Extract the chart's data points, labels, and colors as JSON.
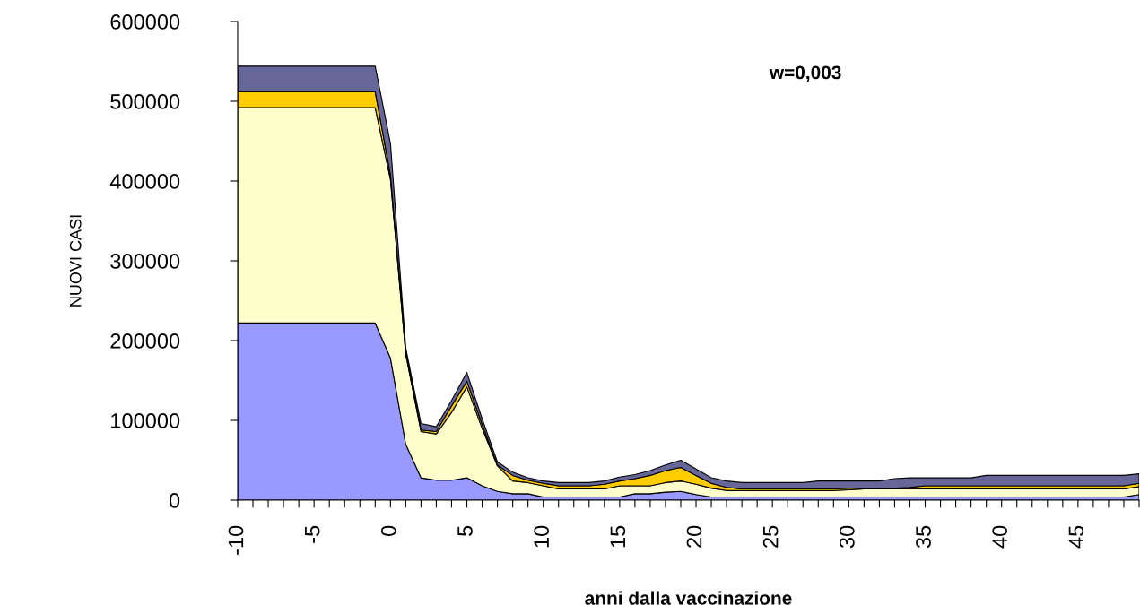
{
  "chart_data": {
    "type": "area",
    "stacked": true,
    "xlabel": "anni dalla vaccinazione",
    "ylabel": "NUOVI CASI",
    "annotations": [
      "w=0,003"
    ],
    "x": [
      -10,
      -9,
      -8,
      -7,
      -6,
      -5,
      -4,
      -3,
      -2,
      -1,
      0,
      1,
      2,
      3,
      4,
      5,
      6,
      7,
      8,
      9,
      10,
      11,
      12,
      13,
      14,
      15,
      16,
      17,
      18,
      19,
      20,
      21,
      22,
      23,
      24,
      25,
      26,
      27,
      28,
      29,
      30,
      31,
      32,
      33,
      34,
      35,
      36,
      37,
      38,
      39,
      40,
      41,
      42,
      43,
      44,
      45,
      46,
      47,
      48,
      49
    ],
    "xlim": [
      -10,
      49
    ],
    "xticks": [
      -10,
      {
        "value": -9,
        "label": null
      },
      {
        "value": -8,
        "label": null
      },
      {
        "value": -7,
        "label": null
      },
      {
        "value": -6,
        "label": null
      },
      {
        "value": -5,
        "label": "-5"
      },
      {
        "value": -4,
        "label": null
      },
      {
        "value": -3,
        "label": null
      },
      {
        "value": -2,
        "label": null
      },
      {
        "value": -1,
        "label": null
      },
      0,
      {
        "value": 1,
        "label": null
      },
      {
        "value": 2,
        "label": null
      },
      {
        "value": 3,
        "label": null
      },
      {
        "value": 4,
        "label": null
      },
      5,
      {
        "value": 6,
        "label": null
      },
      {
        "value": 7,
        "label": null
      },
      {
        "value": 8,
        "label": null
      },
      {
        "value": 9,
        "label": null
      },
      10,
      {
        "value": 11,
        "label": null
      },
      {
        "value": 12,
        "label": null
      },
      {
        "value": 13,
        "label": null
      },
      {
        "value": 14,
        "label": null
      },
      15,
      {
        "value": 16,
        "label": null
      },
      {
        "value": 17,
        "label": null
      },
      {
        "value": 18,
        "label": null
      },
      {
        "value": 19,
        "label": null
      },
      20,
      {
        "value": 21,
        "label": null
      },
      {
        "value": 22,
        "label": null
      },
      {
        "value": 23,
        "label": null
      },
      {
        "value": 24,
        "label": null
      },
      25,
      {
        "value": 26,
        "label": null
      },
      {
        "value": 27,
        "label": null
      },
      {
        "value": 28,
        "label": null
      },
      {
        "value": 29,
        "label": null
      },
      30,
      {
        "value": 31,
        "label": null
      },
      {
        "value": 32,
        "label": null
      },
      {
        "value": 33,
        "label": null
      },
      {
        "value": 34,
        "label": null
      },
      35,
      {
        "value": 36,
        "label": null
      },
      {
        "value": 37,
        "label": null
      },
      {
        "value": 38,
        "label": null
      },
      {
        "value": 39,
        "label": null
      },
      40,
      {
        "value": 41,
        "label": null
      },
      {
        "value": 42,
        "label": null
      },
      {
        "value": 43,
        "label": null
      },
      {
        "value": 44,
        "label": null
      },
      45,
      {
        "value": 46,
        "label": null
      },
      {
        "value": 47,
        "label": null
      },
      {
        "value": 48,
        "label": null
      },
      {
        "value": 49,
        "label": null
      }
    ],
    "ylim": [
      0,
      600000
    ],
    "yticks": [
      0,
      100000,
      200000,
      300000,
      400000,
      500000,
      600000
    ],
    "grid": false,
    "series": [
      {
        "color": "#9999ff",
        "values": [
          222000,
          222000,
          222000,
          222000,
          222000,
          222000,
          222000,
          222000,
          222000,
          222000,
          178000,
          70000,
          28000,
          25000,
          25000,
          28000,
          18000,
          11000,
          8000,
          8000,
          4000,
          4000,
          4000,
          4000,
          4000,
          4000,
          8000,
          8000,
          10000,
          11000,
          7000,
          4000,
          4000,
          4000,
          4000,
          4000,
          4000,
          4000,
          4000,
          4000,
          4000,
          4000,
          4000,
          4000,
          4000,
          4000,
          4000,
          4000,
          4000,
          4000,
          4000,
          4000,
          4000,
          4000,
          4000,
          4000,
          4000,
          4000,
          4000,
          7000
        ]
      },
      {
        "color": "#ffffcc",
        "values": [
          270000,
          270000,
          270000,
          270000,
          270000,
          270000,
          270000,
          270000,
          270000,
          270000,
          224000,
          113000,
          58000,
          58000,
          85000,
          114000,
          72000,
          32000,
          16000,
          14000,
          14000,
          10000,
          10000,
          10000,
          10000,
          14000,
          10000,
          10000,
          12000,
          13000,
          13000,
          11000,
          8000,
          8000,
          8000,
          8000,
          8000,
          8000,
          8000,
          8000,
          9000,
          10000,
          10000,
          10000,
          10000,
          10000,
          10000,
          10000,
          10000,
          10000,
          10000,
          10000,
          10000,
          10000,
          10000,
          10000,
          10000,
          10000,
          10000,
          10000
        ]
      },
      {
        "color": "#ffcc00",
        "values": [
          20000,
          20000,
          20000,
          20000,
          20000,
          20000,
          20000,
          20000,
          20000,
          20000,
          6000,
          3000,
          2000,
          3000,
          8000,
          7000,
          5000,
          1000,
          7000,
          3000,
          3000,
          4000,
          4000,
          4000,
          6000,
          6000,
          9000,
          13000,
          15000,
          17000,
          11000,
          6000,
          4000,
          2000,
          2000,
          2000,
          2000,
          2000,
          2000,
          2000,
          2000,
          1000,
          1000,
          1000,
          2000,
          4000,
          4000,
          4000,
          4000,
          4000,
          4000,
          4000,
          4000,
          4000,
          4000,
          4000,
          4000,
          4000,
          4000,
          4000
        ]
      },
      {
        "color": "#666699",
        "values": [
          32000,
          32000,
          32000,
          32000,
          32000,
          32000,
          32000,
          32000,
          32000,
          32000,
          39000,
          5000,
          8000,
          6000,
          7000,
          11000,
          7000,
          4000,
          4000,
          3000,
          3000,
          4000,
          4000,
          4000,
          4000,
          5000,
          5000,
          6000,
          7000,
          9000,
          8000,
          7000,
          8000,
          8000,
          8000,
          8000,
          8000,
          8000,
          10000,
          10000,
          9000,
          9000,
          9000,
          12000,
          12000,
          10000,
          10000,
          10000,
          10000,
          13000,
          13000,
          13000,
          13000,
          13000,
          13000,
          13000,
          13000,
          13000,
          13000,
          12000
        ]
      }
    ]
  }
}
